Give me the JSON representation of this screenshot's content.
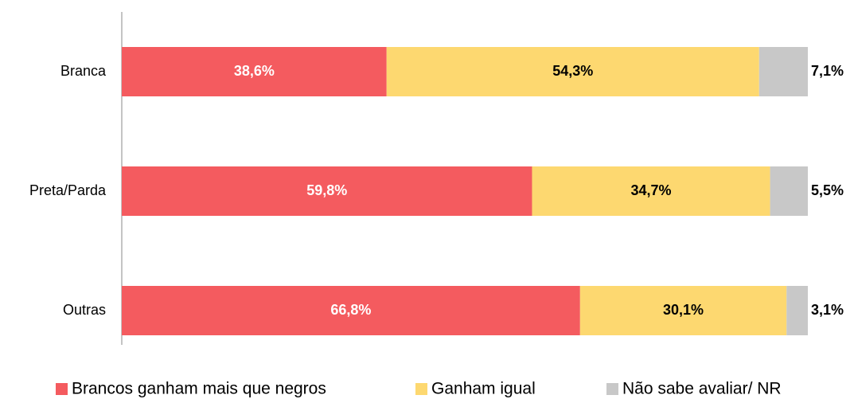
{
  "chart_data": {
    "type": "stacked_barh",
    "categories": [
      "Branca",
      "Preta/Parda",
      "Outras"
    ],
    "xlim": [
      0,
      100
    ],
    "series": [
      {
        "name": "Brancos ganham mais que negros",
        "color": "#f45b5f",
        "values": [
          38.6,
          59.8,
          66.8
        ],
        "value_labels": [
          "38,6%",
          "59,8%",
          "66,8%"
        ]
      },
      {
        "name": "Ganham igual",
        "color": "#fdd870",
        "values": [
          54.3,
          34.7,
          30.1
        ],
        "value_labels": [
          "54,3%",
          "34,7%",
          "30,1%"
        ]
      },
      {
        "name": "Não sabe avaliar/ NR",
        "color": "#c8c8c8",
        "values": [
          7.1,
          5.5,
          3.1
        ],
        "value_labels": [
          "7,1%",
          "5,5%",
          "3,1%"
        ]
      }
    ],
    "legend": "bottom"
  }
}
